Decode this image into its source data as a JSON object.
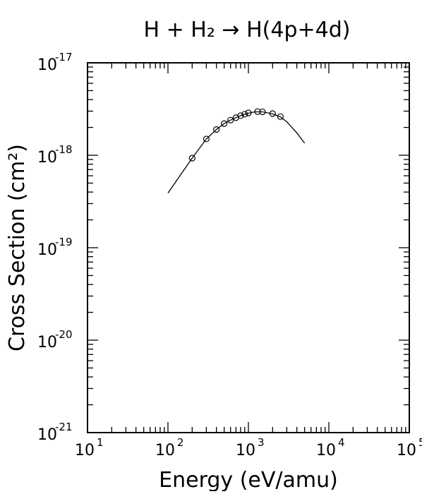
{
  "chart_data": {
    "type": "line",
    "title": "H + H₂ → H(4p+4d)",
    "xlabel": "Energy (eV/amu)",
    "ylabel": "Cross Section (cm²)",
    "x_scale": "log",
    "y_scale": "log",
    "xlim": [
      10,
      100000
    ],
    "ylim": [
      1e-21,
      1e-17
    ],
    "x_tick_labels": [
      {
        "base": "10",
        "exp": "1"
      },
      {
        "base": "10",
        "exp": "2"
      },
      {
        "base": "10",
        "exp": "3"
      },
      {
        "base": "10",
        "exp": "4"
      },
      {
        "base": "10",
        "exp": "5"
      }
    ],
    "y_tick_labels": [
      {
        "base": "10",
        "exp": "-21"
      },
      {
        "base": "10",
        "exp": "-20"
      },
      {
        "base": "10",
        "exp": "-19"
      },
      {
        "base": "10",
        "exp": "-18"
      },
      {
        "base": "10",
        "exp": "-17"
      }
    ],
    "grid": false,
    "series": [
      {
        "style": "line",
        "x": [
          100,
          150,
          200,
          300,
          400,
          500,
          600,
          700,
          800,
          1000,
          1200,
          1500,
          2000,
          2500,
          3000,
          4000,
          5000
        ],
        "y": [
          3.9e-19,
          6.5e-19,
          9.3e-19,
          1.5e-18,
          1.9e-18,
          2.2e-18,
          2.4e-18,
          2.55e-18,
          2.68e-18,
          2.85e-18,
          2.95e-18,
          2.95e-18,
          2.8e-18,
          2.6e-18,
          2.3e-18,
          1.75e-18,
          1.35e-18
        ]
      },
      {
        "style": "markers",
        "marker": "open-circle",
        "x": [
          200,
          300,
          400,
          500,
          600,
          700,
          800,
          900,
          1000,
          1300,
          1500,
          2000,
          2500
        ],
        "y": [
          9.3e-19,
          1.5e-18,
          1.9e-18,
          2.2e-18,
          2.4e-18,
          2.55e-18,
          2.68e-18,
          2.78e-18,
          2.87e-18,
          2.97e-18,
          2.95e-18,
          2.82e-18,
          2.62e-18
        ]
      }
    ]
  }
}
